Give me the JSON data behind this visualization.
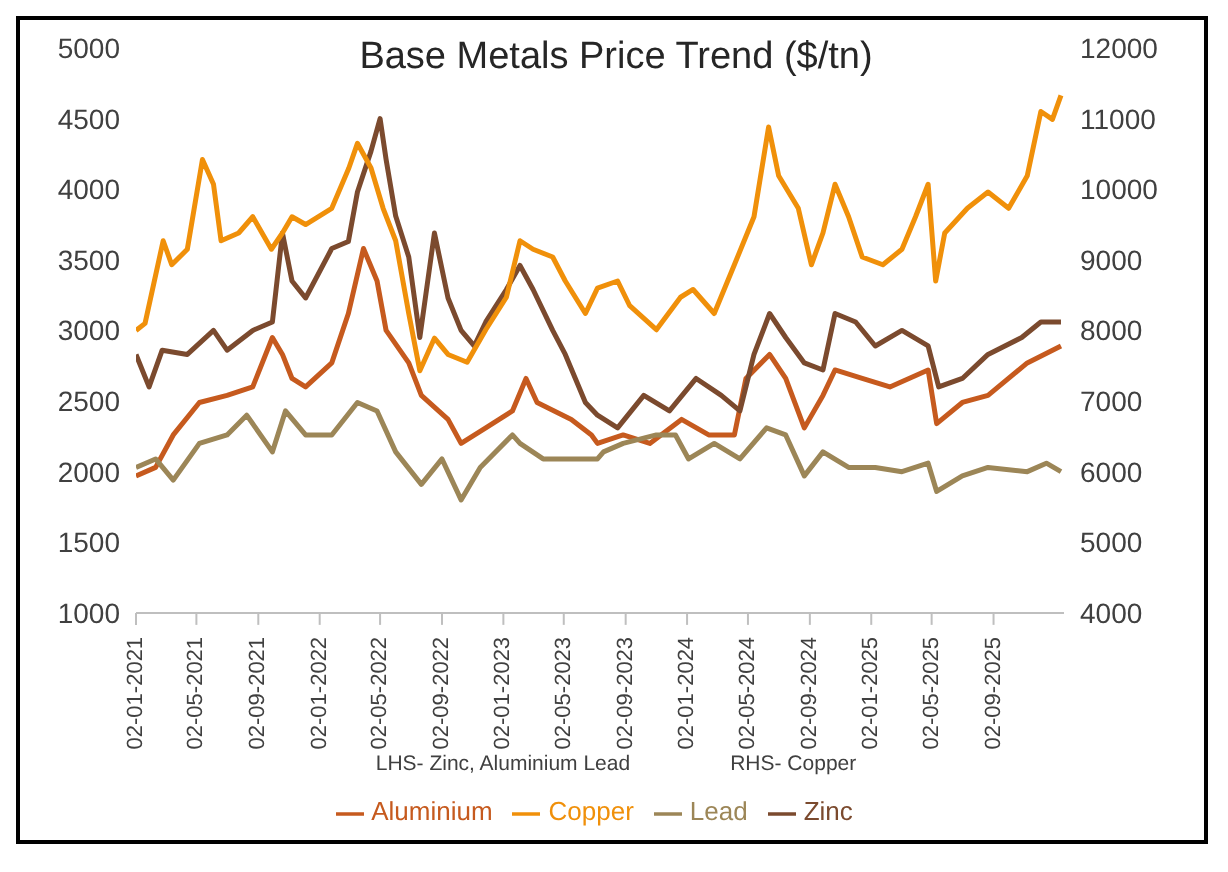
{
  "chart_data": {
    "type": "line",
    "title": "Base Metals Price Trend ($/tn)",
    "annotations": [
      "LHS- Zinc, Aluminium Lead",
      "RHS- Copper"
    ],
    "xlim": [
      "2021-01-02",
      "2026-01-20"
    ],
    "xticks": [
      {
        "value": "2021-01-02",
        "label": "02-01-2021"
      },
      {
        "value": "2021-05-02",
        "label": "02-05-2021"
      },
      {
        "value": "2021-09-02",
        "label": "02-09-2021"
      },
      {
        "value": "2022-01-02",
        "label": "02-01-2022"
      },
      {
        "value": "2022-05-02",
        "label": "02-05-2022"
      },
      {
        "value": "2022-09-02",
        "label": "02-09-2022"
      },
      {
        "value": "2023-01-02",
        "label": "02-01-2023"
      },
      {
        "value": "2023-05-02",
        "label": "02-05-2023"
      },
      {
        "value": "2023-09-02",
        "label": "02-09-2023"
      },
      {
        "value": "2024-01-02",
        "label": "02-01-2024"
      },
      {
        "value": "2024-05-02",
        "label": "02-05-2024"
      },
      {
        "value": "2024-09-02",
        "label": "02-09-2024"
      },
      {
        "value": "2025-01-02",
        "label": "02-01-2025"
      },
      {
        "value": "2025-05-02",
        "label": "02-05-2025"
      },
      {
        "value": "2025-09-02",
        "label": "02-09-2025"
      }
    ],
    "ylim": [
      1000,
      5000
    ],
    "yticks": [
      1000,
      1500,
      2000,
      2500,
      3000,
      3500,
      4000,
      4500,
      5000
    ],
    "y2lim": [
      4000,
      12000
    ],
    "y2ticks": [
      4000,
      5000,
      6000,
      7000,
      8000,
      9000,
      10000,
      11000,
      12000
    ],
    "grid": false,
    "legend": "bottom",
    "marker": "none",
    "line_style": "solid",
    "series": [
      {
        "name": "Aluminium",
        "color": "#c65a1e",
        "x": [
          "2021-01-02",
          "2021-02-10",
          "2021-03-17",
          "2021-05-08",
          "2021-07-02",
          "2021-08-22",
          "2021-09-30",
          "2021-10-20",
          "2021-11-08",
          "2021-12-05",
          "2022-01-26",
          "2022-02-28",
          "2022-03-30",
          "2022-04-26",
          "2022-05-14",
          "2022-06-28",
          "2022-07-23",
          "2022-09-14",
          "2022-10-10",
          "2022-11-28",
          "2023-01-20",
          "2023-02-16",
          "2023-03-10",
          "2023-05-17",
          "2023-06-26",
          "2023-07-08",
          "2023-08-28",
          "2023-10-20",
          "2023-12-22",
          "2024-02-14",
          "2024-04-05",
          "2024-04-28",
          "2024-06-14",
          "2024-07-16",
          "2024-08-22",
          "2024-09-28",
          "2024-10-22",
          "2024-12-15",
          "2025-02-08",
          "2025-04-25",
          "2025-05-12",
          "2025-07-02",
          "2025-08-22",
          "2025-11-08",
          "2026-01-14"
        ],
        "values": [
          1970,
          2030,
          2260,
          2490,
          2540,
          2600,
          2950,
          2830,
          2660,
          2600,
          2770,
          3120,
          3580,
          3350,
          3000,
          2770,
          2540,
          2370,
          2200,
          2310,
          2430,
          2660,
          2490,
          2370,
          2260,
          2200,
          2260,
          2200,
          2370,
          2260,
          2260,
          2660,
          2830,
          2660,
          2310,
          2540,
          2720,
          2660,
          2600,
          2720,
          2340,
          2490,
          2540,
          2770,
          2890
        ]
      },
      {
        "name": "Zinc",
        "color": "#7b4a2e",
        "x": [
          "2021-01-02",
          "2021-01-28",
          "2021-02-23",
          "2021-04-14",
          "2021-06-05",
          "2021-07-02",
          "2021-08-22",
          "2021-09-30",
          "2021-10-20",
          "2021-11-08",
          "2021-12-05",
          "2022-01-26",
          "2022-02-28",
          "2022-03-18",
          "2022-04-14",
          "2022-05-02",
          "2022-05-14",
          "2022-06-02",
          "2022-06-28",
          "2022-07-20",
          "2022-08-18",
          "2022-09-14",
          "2022-10-10",
          "2022-11-05",
          "2022-11-28",
          "2023-01-08",
          "2023-02-04",
          "2023-03-02",
          "2023-04-10",
          "2023-05-05",
          "2023-06-14",
          "2023-07-08",
          "2023-08-17",
          "2023-10-08",
          "2023-11-28",
          "2024-01-20",
          "2024-03-10",
          "2024-04-16",
          "2024-05-14",
          "2024-06-14",
          "2024-07-16",
          "2024-08-22",
          "2024-09-28",
          "2024-10-22",
          "2024-12-02",
          "2025-01-10",
          "2025-03-04",
          "2025-04-25",
          "2025-05-16",
          "2025-07-02",
          "2025-08-22",
          "2025-10-28",
          "2025-12-05",
          "2026-01-14"
        ],
        "values": [
          2830,
          2600,
          2860,
          2830,
          3000,
          2860,
          3000,
          3060,
          3690,
          3350,
          3230,
          3580,
          3630,
          3980,
          4270,
          4500,
          4210,
          3810,
          3520,
          2950,
          3690,
          3230,
          3000,
          2890,
          3060,
          3290,
          3460,
          3290,
          3000,
          2830,
          2490,
          2400,
          2310,
          2540,
          2430,
          2660,
          2540,
          2430,
          2830,
          3120,
          2950,
          2770,
          2720,
          3120,
          3060,
          2890,
          3000,
          2890,
          2600,
          2660,
          2830,
          2950,
          3060,
          3060
        ]
      },
      {
        "name": "Lead",
        "color": "#9c8657",
        "x": [
          "2021-01-02",
          "2021-02-10",
          "2021-03-17",
          "2021-05-08",
          "2021-07-02",
          "2021-08-10",
          "2021-09-30",
          "2021-10-26",
          "2021-12-05",
          "2022-01-26",
          "2022-03-18",
          "2022-04-26",
          "2022-06-02",
          "2022-07-23",
          "2022-09-02",
          "2022-10-10",
          "2022-11-17",
          "2023-01-20",
          "2023-02-04",
          "2023-03-22",
          "2023-05-17",
          "2023-07-08",
          "2023-07-20",
          "2023-08-28",
          "2023-11-02",
          "2023-12-10",
          "2024-01-05",
          "2024-02-25",
          "2024-04-16",
          "2024-06-08",
          "2024-07-16",
          "2024-08-22",
          "2024-09-28",
          "2024-11-18",
          "2025-01-10",
          "2025-03-04",
          "2025-04-25",
          "2025-05-12",
          "2025-07-02",
          "2025-08-22",
          "2025-11-08",
          "2025-12-16",
          "2026-01-14"
        ],
        "values": [
          2030,
          2090,
          1940,
          2200,
          2260,
          2400,
          2140,
          2430,
          2260,
          2260,
          2490,
          2430,
          2140,
          1910,
          2090,
          1800,
          2030,
          2260,
          2200,
          2090,
          2090,
          2090,
          2140,
          2200,
          2260,
          2260,
          2090,
          2200,
          2090,
          2310,
          2260,
          1970,
          2140,
          2030,
          2030,
          2000,
          2060,
          1860,
          1970,
          2030,
          2000,
          2060,
          2000
        ]
      },
      {
        "name": "Copper",
        "color": "#f0900a",
        "axis": "y2",
        "x": [
          "2021-01-02",
          "2021-01-20",
          "2021-02-25",
          "2021-03-14",
          "2021-04-14",
          "2021-05-14",
          "2021-06-05",
          "2021-06-20",
          "2021-07-25",
          "2021-08-22",
          "2021-09-28",
          "2021-10-20",
          "2021-11-08",
          "2021-12-05",
          "2022-01-26",
          "2022-03-01",
          "2022-03-18",
          "2022-04-14",
          "2022-05-08",
          "2022-06-02",
          "2022-06-28",
          "2022-07-20",
          "2022-08-18",
          "2022-09-14",
          "2022-10-22",
          "2022-11-28",
          "2023-01-08",
          "2023-02-04",
          "2023-03-02",
          "2023-04-10",
          "2023-05-05",
          "2023-06-14",
          "2023-07-08",
          "2023-08-17",
          "2023-09-10",
          "2023-11-02",
          "2023-12-20",
          "2024-01-14",
          "2024-02-25",
          "2024-04-05",
          "2024-05-14",
          "2024-06-12",
          "2024-07-02",
          "2024-08-10",
          "2024-09-05",
          "2024-09-28",
          "2024-10-22",
          "2024-11-18",
          "2024-12-15",
          "2025-01-25",
          "2025-03-04",
          "2025-03-31",
          "2025-04-25",
          "2025-05-10",
          "2025-05-28",
          "2025-07-12",
          "2025-08-22",
          "2025-10-02",
          "2025-11-08",
          "2025-12-05",
          "2025-12-28",
          "2026-01-14"
        ],
        "values": [
          8000,
          8100,
          9270,
          8930,
          9150,
          10420,
          10070,
          9270,
          9380,
          9610,
          9150,
          9380,
          9610,
          9500,
          9730,
          10300,
          10650,
          10300,
          9730,
          9270,
          8240,
          7430,
          7890,
          7660,
          7550,
          8010,
          8470,
          9270,
          9150,
          9040,
          8700,
          8240,
          8600,
          8700,
          8350,
          8010,
          8470,
          8580,
          8240,
          8930,
          9610,
          10880,
          10190,
          9730,
          8930,
          9380,
          10070,
          9610,
          9040,
          8930,
          9150,
          9610,
          10070,
          8700,
          9380,
          9730,
          9960,
          9730,
          10190,
          11100,
          10990,
          11330
        ]
      }
    ]
  }
}
